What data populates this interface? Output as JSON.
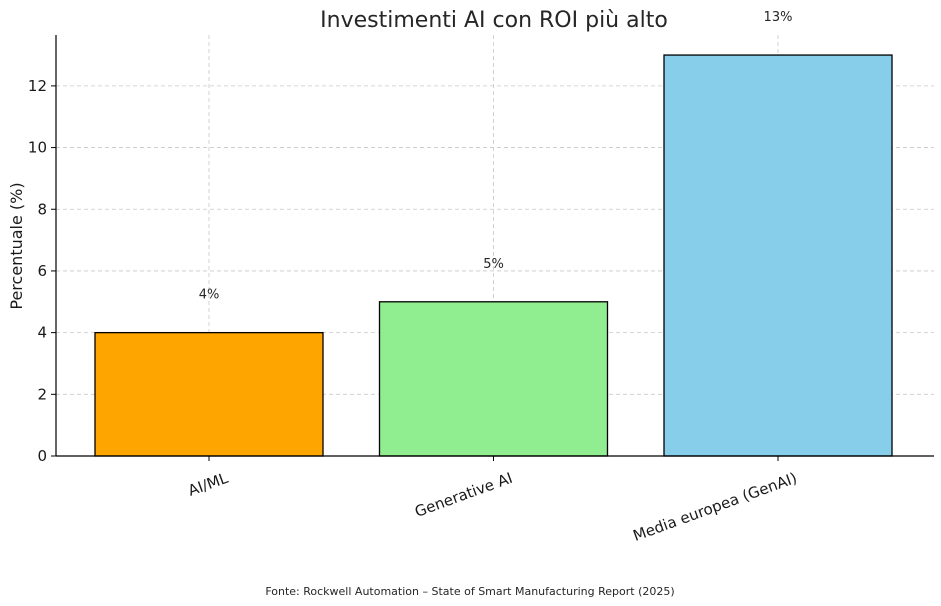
{
  "chart_data": {
    "type": "bar",
    "title": "Investimenti AI con ROI più alto",
    "xlabel": "",
    "ylabel": "Percentuale (%)",
    "categories": [
      "AI/ML",
      "Generative AI",
      "Media europea (GenAI)"
    ],
    "values": [
      4,
      5,
      13
    ],
    "data_labels": [
      "4%",
      "5%",
      "13%"
    ],
    "colors": [
      "#FFA500",
      "#90EE90",
      "#87CEEB"
    ],
    "ylim": [
      0,
      13.65
    ],
    "yticks": [
      0,
      2,
      4,
      6,
      8,
      10,
      12
    ],
    "grid": true,
    "legend": "none"
  },
  "source_note": "Fonte: Rockwell Automation – State of Smart Manufacturing Report (2025)"
}
